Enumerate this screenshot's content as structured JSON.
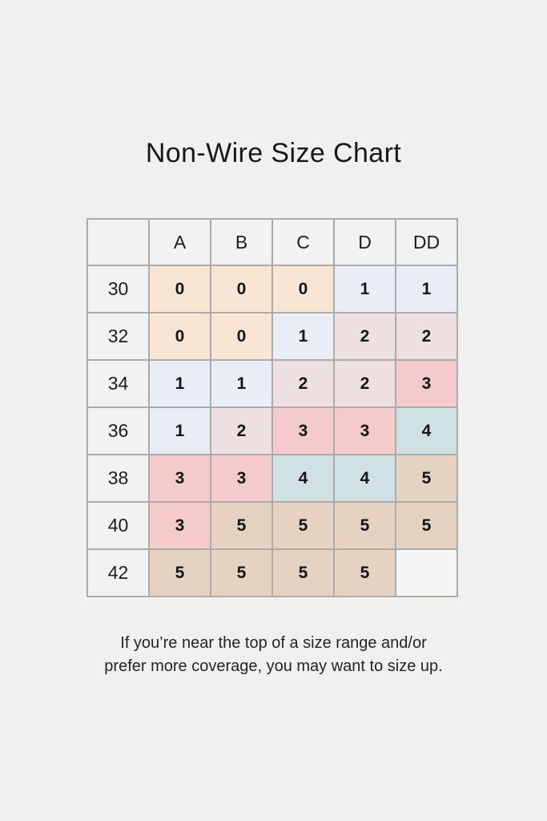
{
  "title": "Non-Wire Size Chart",
  "footer": {
    "line1": "If you’re near the top of a size range and/or",
    "line2": "prefer more coverage, you may want to size up."
  },
  "colors": {
    "page_background": "#f0f0ef",
    "header_cell": "#f2f2f1",
    "grid_border": "#ababab",
    "text": "#1c1c1c"
  },
  "chart_data": {
    "type": "table",
    "title": "Non-Wire Size Chart",
    "column_headers": [
      "",
      "A",
      "B",
      "C",
      "D",
      "DD"
    ],
    "row_headers": [
      "30",
      "32",
      "34",
      "36",
      "38",
      "40",
      "42"
    ],
    "rows": [
      [
        "0",
        "0",
        "0",
        "1",
        "1"
      ],
      [
        "0",
        "0",
        "1",
        "2",
        "2"
      ],
      [
        "1",
        "1",
        "2",
        "2",
        "3"
      ],
      [
        "1",
        "2",
        "3",
        "3",
        "4"
      ],
      [
        "3",
        "3",
        "4",
        "4",
        "5"
      ],
      [
        "3",
        "5",
        "5",
        "5",
        "5"
      ],
      [
        "5",
        "5",
        "5",
        "5",
        ""
      ]
    ],
    "cell_color_by_value": {
      "0": "#f8e5d3",
      "1": "#e9edf6",
      "2": "#eee0e1",
      "3": "#f5caca",
      "4": "#d0e1e4",
      "5": "#e5d2c0",
      "": "#f5f5f5"
    },
    "grid": true,
    "legend_position": "none"
  }
}
